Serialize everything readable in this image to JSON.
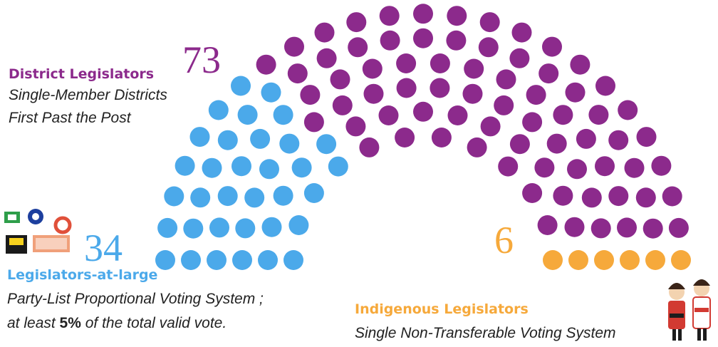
{
  "chart_data": {
    "type": "parliament",
    "series": [
      {
        "name": "Legislators-at-large",
        "color": "#4ba9ea",
        "value": 34,
        "description": [
          [
            "Party-List Proportional Voting System ;"
          ],
          [
            "at least ",
            "5%",
            " of the total valid vote."
          ]
        ]
      },
      {
        "name": "District Legislators",
        "color": "#8c2a8c",
        "value": 73,
        "description": [
          [
            "Single-Member Districts"
          ],
          [
            "First Past the Post"
          ]
        ]
      },
      {
        "name": "Indigenous Legislators",
        "color": "#f6a93b",
        "value": 6,
        "description": [
          [
            "Single Non-Transferable Voting System"
          ]
        ]
      }
    ]
  }
}
